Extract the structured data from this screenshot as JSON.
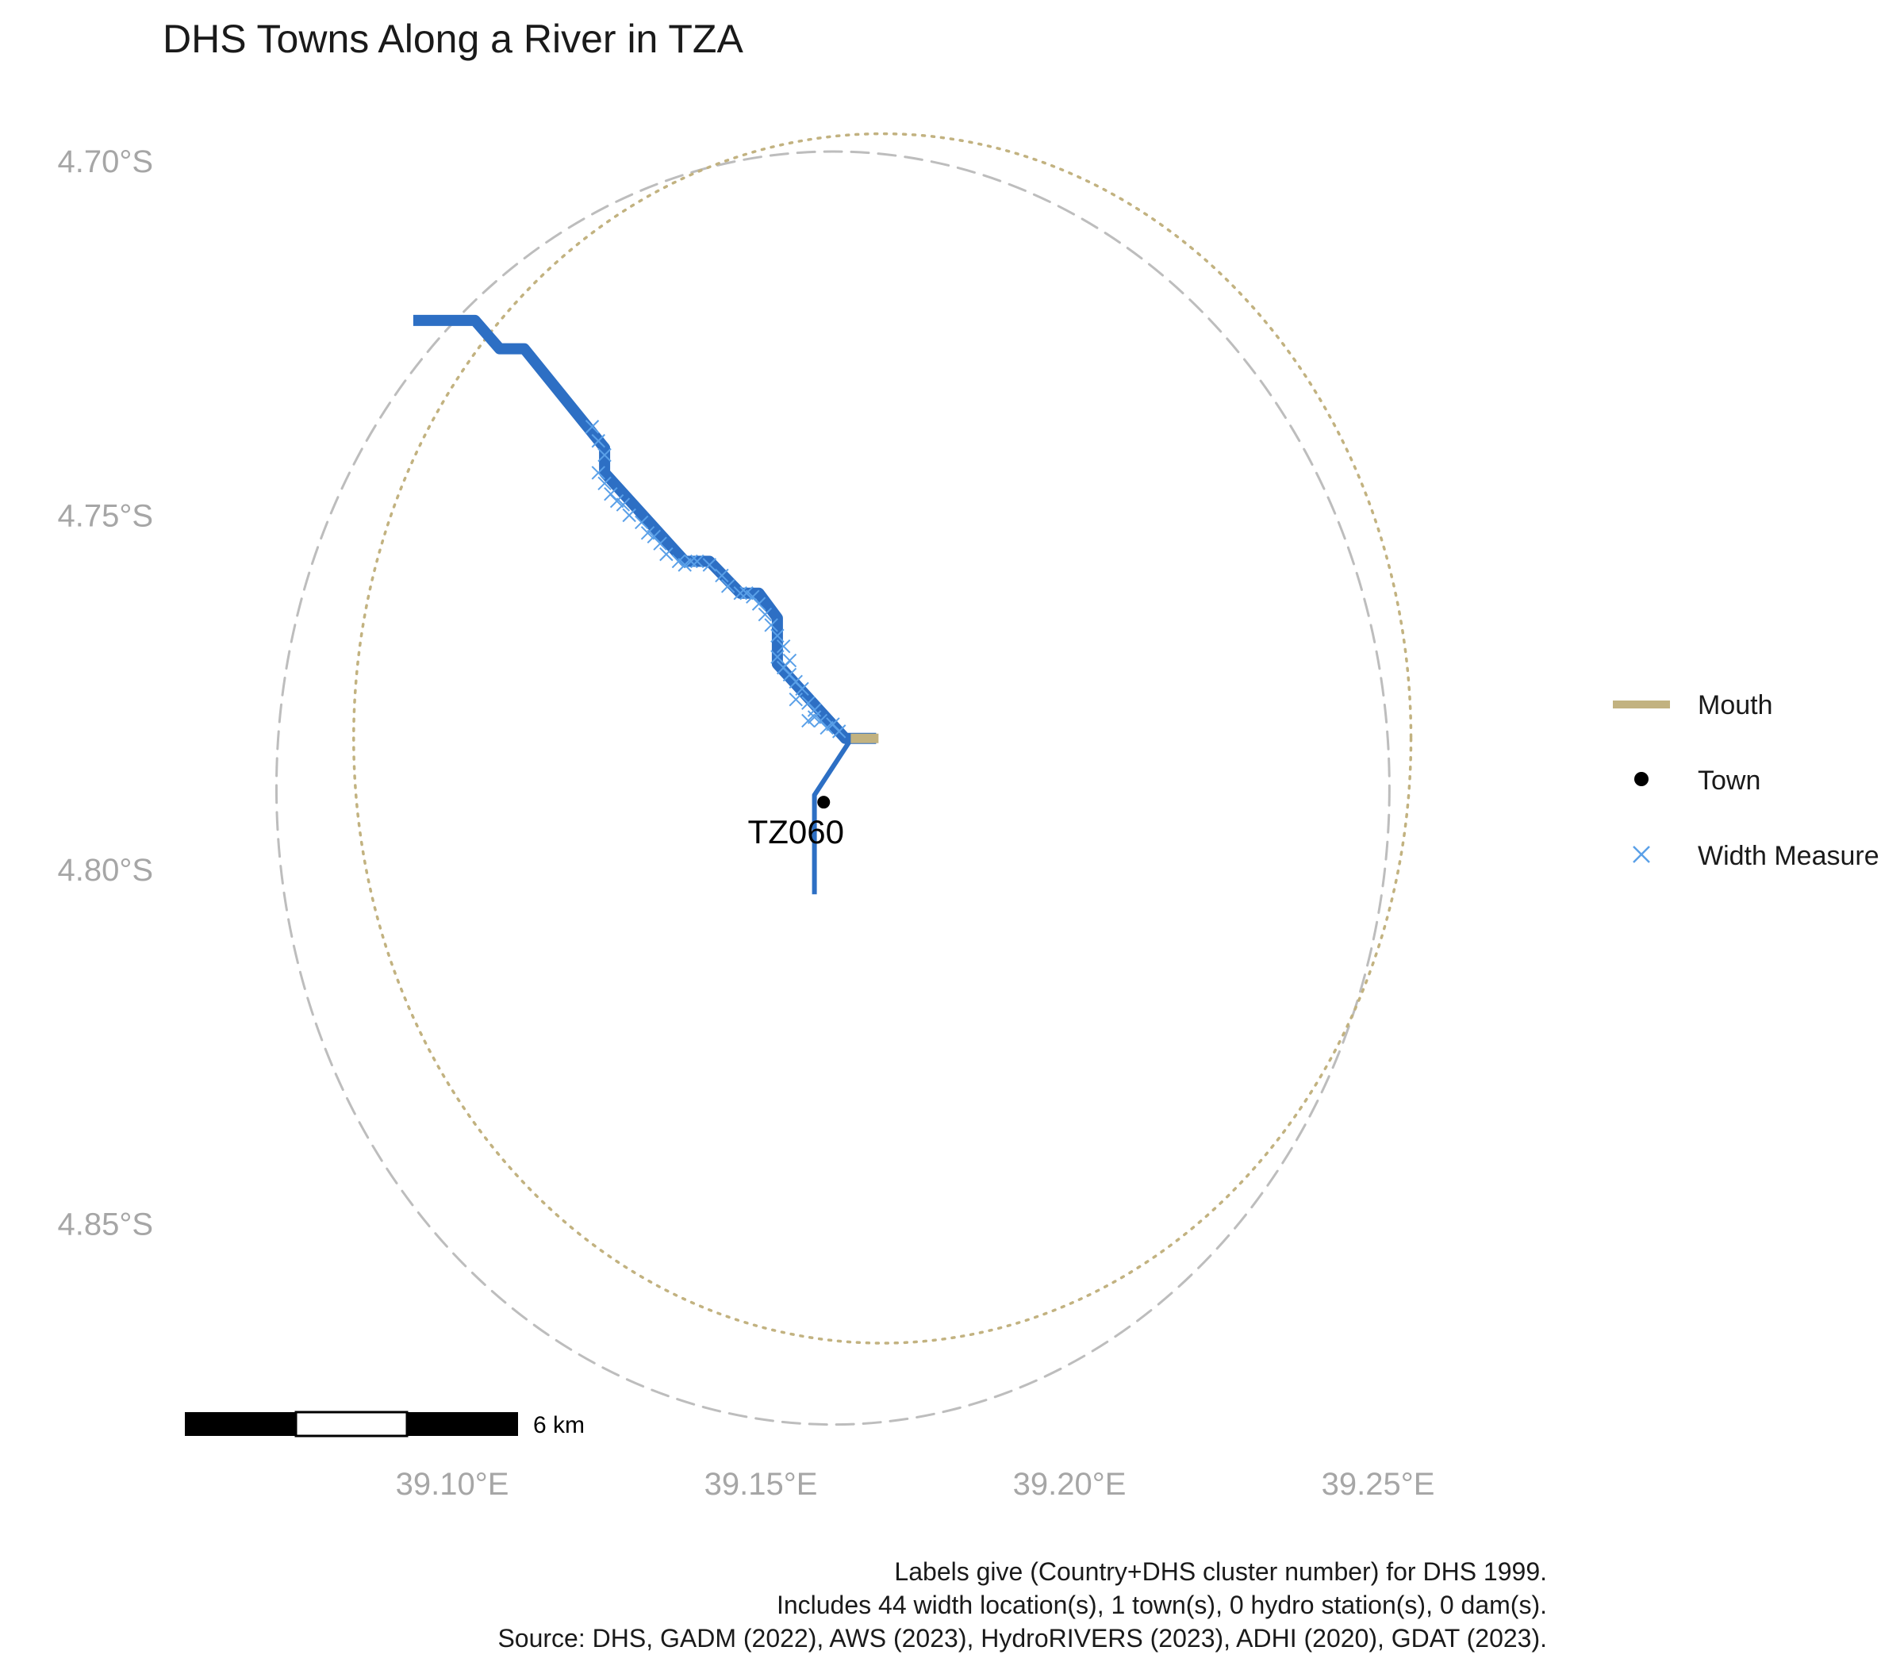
{
  "map": {
    "title": "DHS Towns Along a River in TZA",
    "type": "map",
    "x_ticks": [
      "39.10°E",
      "39.15°E",
      "39.20°E",
      "39.25°E"
    ],
    "x_tick_values": [
      39.1,
      39.15,
      39.2,
      39.25
    ],
    "y_ticks": [
      "4.70°S",
      "4.75°S",
      "4.80°S",
      "4.85°S"
    ],
    "y_tick_values": [
      -4.7,
      -4.75,
      -4.8,
      -4.85
    ],
    "grid": false,
    "colors": {
      "river": "#2d6fc4",
      "mouth": "#c2b280",
      "width_measure": "#5aa0e8",
      "town": "#000000",
      "dashed_circle": "#bdbdbd",
      "dotted_circle": "#c2b280"
    },
    "town": {
      "label": "TZ060",
      "lon": 39.1625,
      "lat": -4.7905
    },
    "mouth": {
      "lon": 39.171,
      "lat": -4.7815
    },
    "river_main": [
      [
        39.096,
        -4.7225
      ],
      [
        39.106,
        -4.7225
      ],
      [
        39.11,
        -4.7265
      ],
      [
        39.114,
        -4.7265
      ],
      [
        39.127,
        -4.7405
      ],
      [
        39.127,
        -4.744
      ],
      [
        39.14,
        -4.7565
      ],
      [
        39.144,
        -4.7565
      ],
      [
        39.149,
        -4.761
      ],
      [
        39.152,
        -4.761
      ],
      [
        39.155,
        -4.7645
      ],
      [
        39.155,
        -4.771
      ],
      [
        39.166,
        -4.7815
      ],
      [
        39.171,
        -4.7815
      ]
    ],
    "river_branch": [
      [
        39.167,
        -4.7815
      ],
      [
        39.161,
        -4.7895
      ],
      [
        39.161,
        -4.8035
      ]
    ],
    "width_measures": [
      [
        39.125,
        -4.7375
      ],
      [
        39.126,
        -4.7395
      ],
      [
        39.127,
        -4.7415
      ],
      [
        39.126,
        -4.744
      ],
      [
        39.127,
        -4.7455
      ],
      [
        39.128,
        -4.747
      ],
      [
        39.13,
        -4.7485
      ],
      [
        39.131,
        -4.75
      ],
      [
        39.133,
        -4.751
      ],
      [
        39.134,
        -4.7525
      ],
      [
        39.136,
        -4.754
      ],
      [
        39.137,
        -4.7555
      ],
      [
        39.139,
        -4.7565
      ],
      [
        39.14,
        -4.757
      ],
      [
        39.142,
        -4.7565
      ],
      [
        39.144,
        -4.757
      ],
      [
        39.146,
        -4.7585
      ],
      [
        39.147,
        -4.76
      ],
      [
        39.149,
        -4.761
      ],
      [
        39.151,
        -4.7615
      ],
      [
        39.152,
        -4.7625
      ],
      [
        39.153,
        -4.764
      ],
      [
        39.154,
        -4.7655
      ],
      [
        39.155,
        -4.767
      ],
      [
        39.156,
        -4.7685
      ],
      [
        39.155,
        -4.77
      ],
      [
        39.156,
        -4.7715
      ],
      [
        39.157,
        -4.7725
      ],
      [
        39.158,
        -4.7735
      ],
      [
        39.159,
        -4.7745
      ],
      [
        39.158,
        -4.776
      ],
      [
        39.16,
        -4.7765
      ],
      [
        39.161,
        -4.7775
      ],
      [
        39.16,
        -4.779
      ],
      [
        39.162,
        -4.779
      ],
      [
        39.163,
        -4.78
      ],
      [
        39.164,
        -4.7795
      ],
      [
        39.165,
        -4.7805
      ],
      [
        39.129,
        -4.748
      ],
      [
        39.135,
        -4.753
      ],
      [
        39.141,
        -4.7565
      ],
      [
        39.15,
        -4.761
      ],
      [
        39.157,
        -4.7705
      ],
      [
        39.161,
        -4.7785
      ]
    ],
    "circles": [
      {
        "style": "dashed",
        "center_lon": 39.164,
        "center_lat": -4.7885,
        "radius_km": 10
      },
      {
        "style": "dotted",
        "center_lon": 39.172,
        "center_lat": -4.7815,
        "radius_km": 9.5
      }
    ],
    "legend": {
      "position": "right",
      "items": [
        {
          "key": "mouth",
          "label": "Mouth"
        },
        {
          "key": "town",
          "label": "Town"
        },
        {
          "key": "width",
          "label": "Width Measure"
        }
      ]
    },
    "scale_bar": {
      "label": "6 km",
      "km": 6
    },
    "caption": [
      "Labels give (Country+DHS cluster number) for DHS 1999.",
      "Includes 44 width location(s), 1 town(s), 0 hydro station(s), 0 dam(s).",
      "Source: DHS, GADM (2022), AWS (2023), HydroRIVERS (2023), ADHI (2020), GDAT (2023)."
    ]
  }
}
